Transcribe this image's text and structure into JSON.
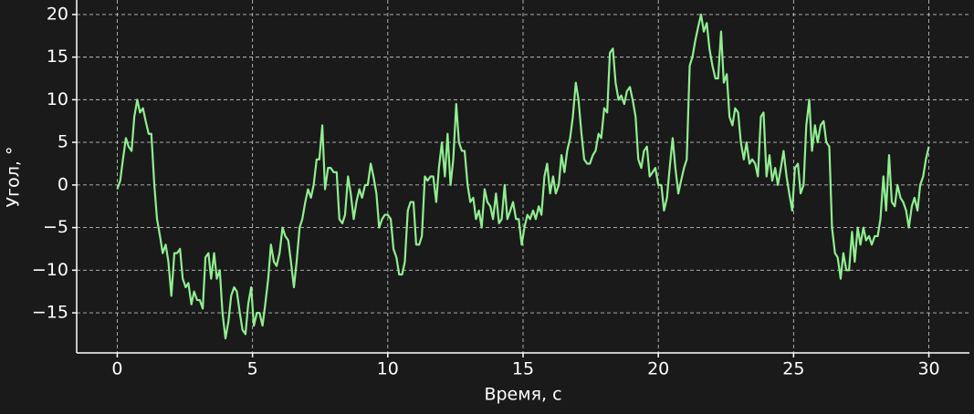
{
  "chart_data": {
    "type": "line",
    "x_label": "Время, с",
    "y_label": "Угол, °",
    "xlim": [
      -1.5,
      31.5
    ],
    "ylim": [
      -19.7,
      21.7
    ],
    "xticks": [
      0,
      5,
      10,
      15,
      20,
      25,
      30
    ],
    "yticks": [
      {
        "value": -15,
        "label": "−15"
      },
      {
        "value": -10,
        "label": "−10"
      },
      {
        "value": -5,
        "label": "−5"
      },
      0,
      5,
      10,
      15,
      20
    ],
    "grid": true,
    "series": [
      {
        "color": "#90ee90",
        "x": [
          0,
          0.11,
          0.21,
          0.32,
          0.42,
          0.53,
          0.63,
          0.74,
          0.84,
          0.95,
          1.05,
          1.16,
          1.26,
          1.37,
          1.47,
          1.58,
          1.68,
          1.79,
          1.89,
          2,
          2.11,
          2.21,
          2.32,
          2.42,
          2.53,
          2.63,
          2.74,
          2.84,
          2.95,
          3.05,
          3.16,
          3.26,
          3.37,
          3.47,
          3.58,
          3.68,
          3.79,
          3.89,
          4,
          4.11,
          4.21,
          4.32,
          4.42,
          4.53,
          4.63,
          4.74,
          4.84,
          4.95,
          5.05,
          5.16,
          5.26,
          5.37,
          5.47,
          5.58,
          5.68,
          5.79,
          5.89,
          6,
          6.11,
          6.21,
          6.32,
          6.42,
          6.53,
          6.63,
          6.74,
          6.84,
          6.95,
          7.05,
          7.16,
          7.26,
          7.37,
          7.47,
          7.58,
          7.68,
          7.79,
          7.89,
          8,
          8.11,
          8.21,
          8.32,
          8.42,
          8.53,
          8.63,
          8.74,
          8.84,
          8.95,
          9.05,
          9.16,
          9.26,
          9.37,
          9.47,
          9.58,
          9.68,
          9.79,
          9.89,
          10,
          10.11,
          10.21,
          10.32,
          10.42,
          10.53,
          10.63,
          10.74,
          10.84,
          10.95,
          11.05,
          11.16,
          11.26,
          11.37,
          11.47,
          11.58,
          11.68,
          11.79,
          11.89,
          12,
          12.11,
          12.21,
          12.32,
          12.42,
          12.53,
          12.63,
          12.74,
          12.84,
          12.95,
          13.05,
          13.16,
          13.26,
          13.37,
          13.47,
          13.58,
          13.68,
          13.79,
          13.89,
          14,
          14.11,
          14.21,
          14.32,
          14.42,
          14.53,
          14.63,
          14.74,
          14.84,
          14.95,
          15.05,
          15.16,
          15.26,
          15.37,
          15.47,
          15.58,
          15.68,
          15.79,
          15.89,
          16,
          16.11,
          16.21,
          16.32,
          16.42,
          16.53,
          16.63,
          16.74,
          16.84,
          16.95,
          17.05,
          17.16,
          17.26,
          17.37,
          17.47,
          17.58,
          17.68,
          17.79,
          17.89,
          18,
          18.11,
          18.21,
          18.32,
          18.42,
          18.53,
          18.63,
          18.74,
          18.84,
          18.95,
          19.05,
          19.16,
          19.26,
          19.37,
          19.47,
          19.58,
          19.68,
          19.79,
          19.89,
          20,
          20.11,
          20.21,
          20.32,
          20.42,
          20.53,
          20.63,
          20.74,
          20.84,
          20.95,
          21.05,
          21.16,
          21.26,
          21.37,
          21.47,
          21.58,
          21.68,
          21.79,
          21.89,
          22,
          22.11,
          22.21,
          22.32,
          22.42,
          22.53,
          22.63,
          22.74,
          22.84,
          22.95,
          23.05,
          23.16,
          23.26,
          23.37,
          23.47,
          23.58,
          23.68,
          23.79,
          23.89,
          24,
          24.11,
          24.21,
          24.32,
          24.42,
          24.53,
          24.63,
          24.74,
          24.84,
          24.95,
          25.05,
          25.16,
          25.26,
          25.37,
          25.47,
          25.58,
          25.68,
          25.79,
          25.89,
          26,
          26.11,
          26.21,
          26.32,
          26.42,
          26.53,
          26.63,
          26.74,
          26.84,
          26.95,
          27.05,
          27.16,
          27.26,
          27.37,
          27.47,
          27.58,
          27.68,
          27.79,
          27.89,
          28,
          28.11,
          28.21,
          28.32,
          28.42,
          28.53,
          28.63,
          28.74,
          28.84,
          28.95,
          29.05,
          29.16,
          29.26,
          29.37,
          29.47,
          29.58,
          29.68,
          29.79,
          29.89,
          30
        ],
        "values": [
          -0.5,
          0.5,
          3,
          5.5,
          4.5,
          4,
          8,
          10,
          8.5,
          9,
          7.5,
          6,
          6,
          0,
          -4,
          -6,
          -8,
          -7,
          -9,
          -13,
          -8,
          -8,
          -7.5,
          -11,
          -12,
          -11.5,
          -14,
          -12.5,
          -13.5,
          -13.5,
          -14.5,
          -8.5,
          -8,
          -11,
          -8,
          -11,
          -10,
          -15,
          -18,
          -16,
          -13,
          -12,
          -12.5,
          -15,
          -17,
          -17.5,
          -14,
          -12,
          -16.5,
          -15,
          -15,
          -16.5,
          -14,
          -11,
          -7,
          -9,
          -9.5,
          -8,
          -5,
          -6,
          -6.5,
          -9,
          -12,
          -9,
          -5,
          -4,
          -2,
          -0.5,
          -1.5,
          0,
          3,
          3,
          7,
          -0.5,
          2,
          2,
          1.5,
          1.5,
          -4,
          -4.5,
          -3.5,
          1,
          -1,
          -4,
          -2,
          -0.5,
          -1.5,
          0,
          0,
          2.5,
          1,
          -1,
          -5,
          -4,
          -3.5,
          -3.5,
          -4,
          -7.5,
          -8.5,
          -10.5,
          -10.5,
          -9,
          -3,
          -2,
          -2,
          -7,
          -7,
          -6,
          1,
          0.5,
          1,
          1,
          -2,
          2,
          5,
          1,
          6,
          0,
          3,
          9.5,
          5,
          4,
          4,
          0,
          -2,
          -1.5,
          -4,
          -3,
          -5,
          -0.5,
          -2,
          -2.5,
          -4,
          -1,
          -4.5,
          -4,
          0,
          -4,
          -3,
          -2,
          -4,
          -4,
          -7,
          -5,
          -3.5,
          -4,
          -3,
          -4,
          -2.5,
          -3.5,
          1,
          2.5,
          -1,
          1,
          -1,
          0,
          3.5,
          1.5,
          4,
          5.5,
          8,
          12,
          10,
          6,
          3,
          2.5,
          2.5,
          3.5,
          4,
          6,
          5.5,
          9,
          8.5,
          15.5,
          16,
          12,
          10,
          10.5,
          9.5,
          11,
          11.5,
          10,
          8,
          3,
          2,
          4,
          4.5,
          1,
          1.5,
          2,
          0,
          0,
          -3,
          -1.5,
          2,
          5.5,
          2,
          -1,
          0.5,
          2,
          3,
          14,
          15,
          17,
          18.5,
          20,
          18,
          19,
          16,
          14,
          12.5,
          12.5,
          18,
          12,
          13,
          8,
          7,
          9,
          8.5,
          5,
          3,
          5,
          2.5,
          3,
          2.5,
          1,
          8,
          8.5,
          1,
          3.5,
          0.5,
          2,
          0,
          2,
          4,
          1,
          -1,
          -3,
          2,
          2.5,
          -1,
          0,
          7,
          10,
          4,
          7,
          5,
          7,
          7.5,
          5,
          4.5,
          -5,
          -8,
          -8.5,
          -11,
          -8,
          -10,
          -10,
          -5.5,
          -9,
          -5,
          -7,
          -5,
          -6.5,
          -6,
          -7,
          -6,
          -6,
          -4,
          1,
          -3,
          3.5,
          -2,
          -2.5,
          0,
          -1.5,
          -2,
          -3,
          -5,
          -2.5,
          -1.5,
          -3,
          0,
          1,
          3,
          4.5
        ]
      }
    ]
  }
}
